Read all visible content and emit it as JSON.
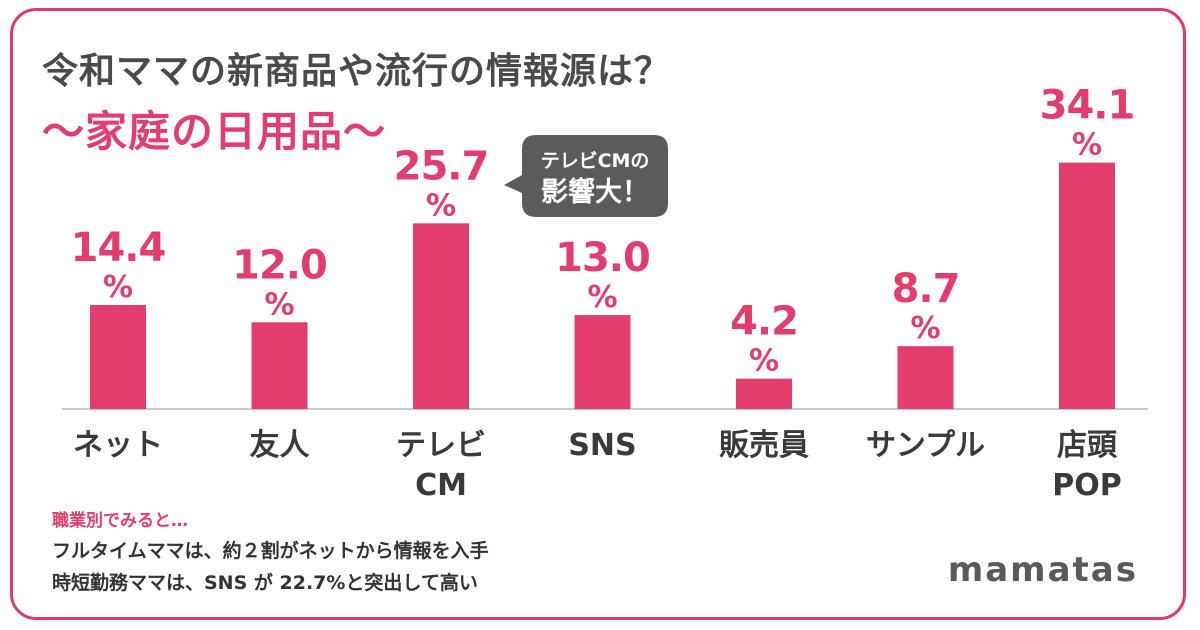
{
  "header": {
    "title": "令和ママの新商品や流行の情報源は？",
    "subtitle": "～家庭の日用品～"
  },
  "chart_data": {
    "type": "bar",
    "categories": [
      [
        "ネット"
      ],
      [
        "友人"
      ],
      [
        "テレビ",
        "CM"
      ],
      [
        "SNS"
      ],
      [
        "販売員"
      ],
      [
        "サンプル"
      ],
      [
        "店頭",
        "POP"
      ]
    ],
    "values": [
      14.4,
      12.0,
      25.7,
      13.0,
      4.2,
      8.7,
      34.1
    ],
    "value_labels": [
      "14.4",
      "12.0",
      "25.7",
      "13.0",
      "4.2",
      "8.7",
      "34.1"
    ],
    "unit": "%",
    "ylim": [
      0,
      40
    ],
    "grid": false,
    "bar_color": "#e33d6d",
    "callout": {
      "category_index": 2,
      "lines": [
        "テレビCMの",
        "影響大！"
      ]
    }
  },
  "notes": {
    "heading": "職業別でみると…",
    "line1": "フルタイムママは、約２割がネットから情報を入手",
    "line2": "時短勤務ママは、SNS が 22.7%と突出して高い"
  },
  "brand": "mamatas",
  "colors": {
    "accent": "#e33d6d",
    "text": "#4a4a4a",
    "callout_bg": "#5b5b5b"
  }
}
